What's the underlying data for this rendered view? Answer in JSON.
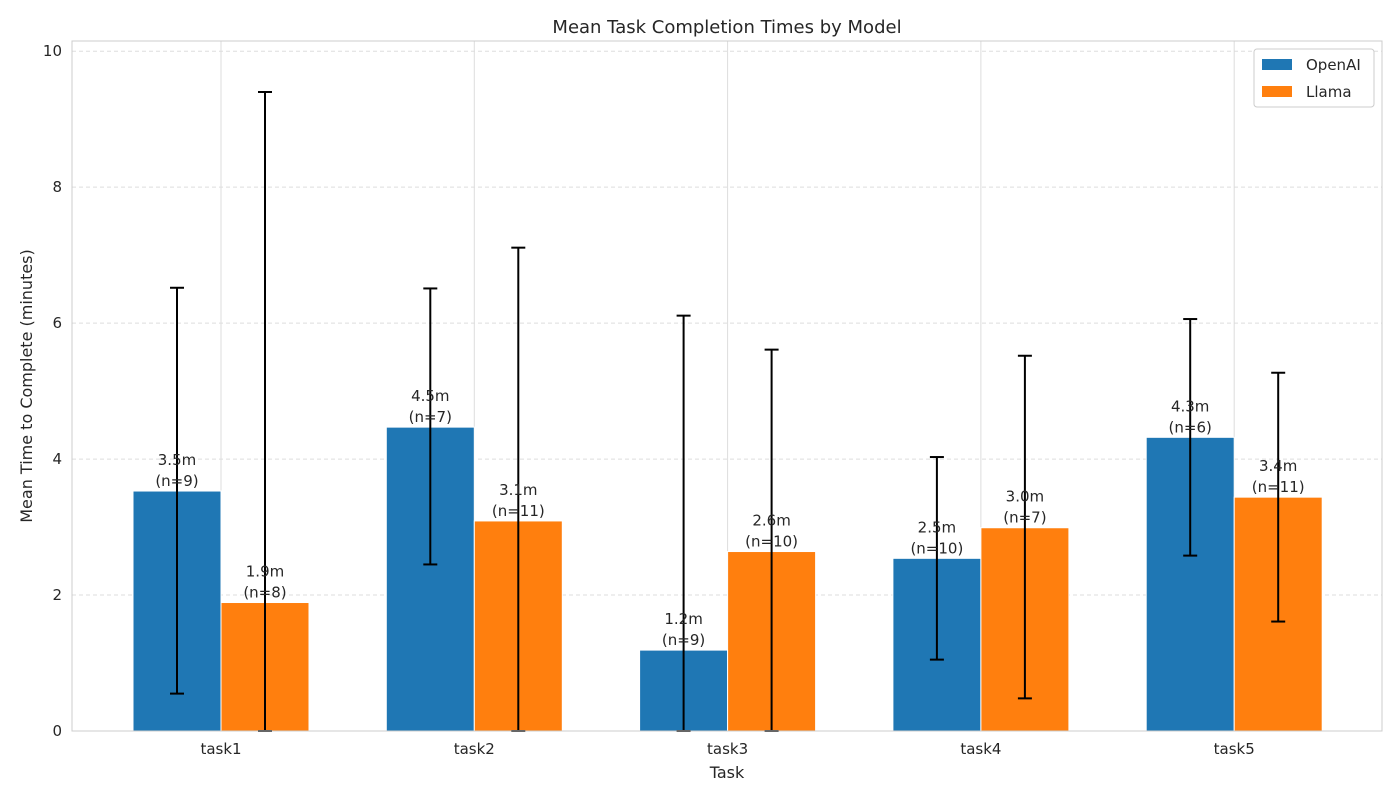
{
  "chart_data": {
    "type": "bar",
    "title": "Mean Task Completion Times by Model",
    "xlabel": "Task",
    "ylabel": "Mean Time to Complete (minutes)",
    "categories": [
      "task1",
      "task2",
      "task3",
      "task4",
      "task5"
    ],
    "ylim": [
      0,
      10.15
    ],
    "yticks": [
      0,
      2,
      4,
      6,
      8,
      10
    ],
    "grid": true,
    "legend_position": "top-right",
    "series": [
      {
        "name": "OpenAI",
        "color": "#1f77b4",
        "values": [
          3.53,
          4.47,
          1.19,
          2.54,
          4.32
        ],
        "err_low": [
          0.55,
          2.45,
          0.0,
          1.05,
          2.58
        ],
        "err_high": [
          6.52,
          6.51,
          6.11,
          4.03,
          6.06
        ],
        "labels": [
          "3.5m\n(n=9)",
          "4.5m\n(n=7)",
          "1.2m\n(n=9)",
          "2.5m\n(n=10)",
          "4.3m\n(n=6)"
        ]
      },
      {
        "name": "Llama",
        "color": "#ff7f0e",
        "values": [
          1.89,
          3.09,
          2.64,
          2.99,
          3.44
        ],
        "err_low": [
          0.0,
          0.0,
          0.0,
          0.48,
          1.61
        ],
        "err_high": [
          9.4,
          7.11,
          5.61,
          5.52,
          5.27
        ],
        "labels": [
          "1.9m\n(n=8)",
          "3.1m\n(n=11)",
          "2.6m\n(n=10)",
          "3.0m\n(n=7)",
          "3.4m\n(n=11)"
        ]
      }
    ]
  }
}
